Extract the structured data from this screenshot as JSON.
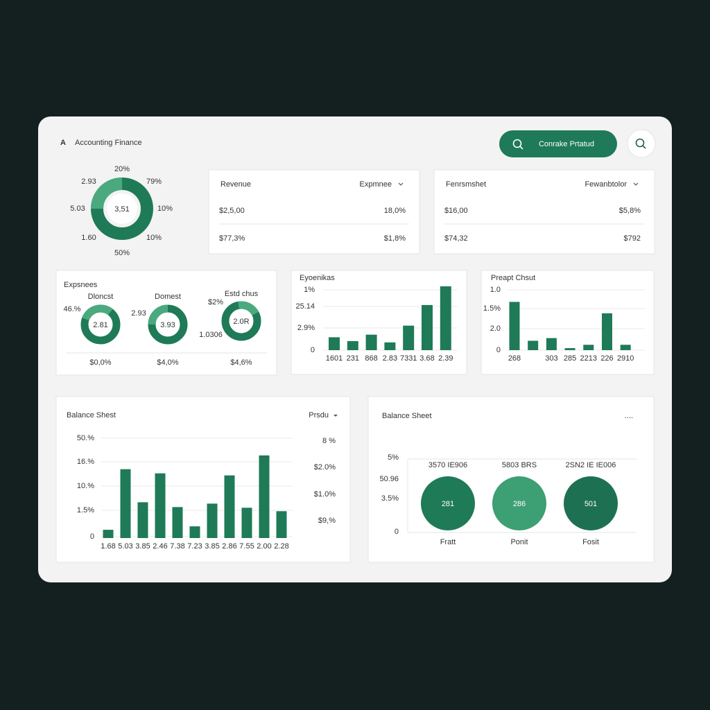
{
  "header": {
    "logo": "A",
    "title": "Accounting Finance",
    "button": "Conrake Prtatud"
  },
  "summary_donut": {
    "center": "3,51",
    "labels": [
      "20%",
      "79%",
      "10%",
      "10%",
      "50%",
      "1.60",
      "5.03",
      "2.93"
    ]
  },
  "kpi_cards": [
    {
      "title": "Revenue",
      "dropdown": "Expmnee",
      "rows": [
        [
          "$2,5,00",
          "18,0%"
        ],
        [
          "$77,3%",
          "$1,8%"
        ]
      ]
    },
    {
      "title": "Fenrsmshet",
      "dropdown": "Fewanbtolor",
      "rows": [
        [
          "$16,00",
          "$5,8%"
        ],
        [
          "$74,32",
          "$792"
        ]
      ]
    }
  ],
  "expenses": {
    "title": "Expsnees",
    "donuts": [
      {
        "label": "Dloncst",
        "side": "46.%",
        "center": "2.81",
        "value": "$0,0%"
      },
      {
        "label": "Domest",
        "side": "2.93",
        "center": "3.93",
        "value": "$4,0%"
      },
      {
        "label": "Estd chus",
        "side": "$2%",
        "side2": "1.0306",
        "center": "2.0R",
        "value": "$4,6%"
      }
    ]
  },
  "bar_charts": [
    {
      "title": "Eyoenikas",
      "y_labels": [
        "1%",
        "25.14",
        "2.9%",
        "0"
      ],
      "categories": [
        "1601",
        "231",
        "868",
        "2.83",
        "7331",
        "3.68",
        "2.39"
      ],
      "values": [
        20,
        14,
        24,
        12,
        38,
        70,
        99
      ],
      "ylim": [
        0,
        100
      ],
      "color": "#1f7a57"
    },
    {
      "title": "Preapt Chsut",
      "y_labels": [
        "1.0",
        "1.5%",
        "2.0",
        "0"
      ],
      "categories": [
        "268",
        null,
        "303",
        "285",
        "2213",
        "226",
        "2910"
      ],
      "values": [
        72,
        14,
        18,
        3,
        8,
        55,
        8
      ],
      "ylim": [
        0,
        90
      ],
      "color": "#1f7a57"
    },
    {
      "title": "Balance Shest",
      "dropdown": "Prsdu",
      "y_labels": [
        "50.%",
        "16.%",
        "10.%",
        "1.5%",
        "0"
      ],
      "categories": [
        "1.68",
        "5.03",
        "3.85",
        "2.46",
        "7.38",
        "7.23",
        "3.85",
        "2.86",
        "7.55",
        "2.00",
        "2.28"
      ],
      "values": [
        12,
        100,
        52,
        94,
        45,
        17,
        50,
        91,
        44,
        120,
        39
      ],
      "ylim": [
        0,
        145
      ],
      "color": "#1f7a57",
      "side_values": [
        "8 %",
        "$2.0%",
        "$1.0%",
        "$9,%"
      ]
    }
  ],
  "balance_bubbles": {
    "title": "Balance Sheet",
    "menu": "....",
    "y_labels": [
      "5%",
      "50.96",
      "3.5%",
      "0"
    ],
    "bubbles": [
      {
        "label": "3570 IE906",
        "value": "281",
        "caption": "Fratt"
      },
      {
        "label": "5803 BRS",
        "value": "286",
        "caption": "Ponit"
      },
      {
        "label": "2SN2 IE IE006",
        "value": "501",
        "caption": "Fosit"
      }
    ]
  }
}
